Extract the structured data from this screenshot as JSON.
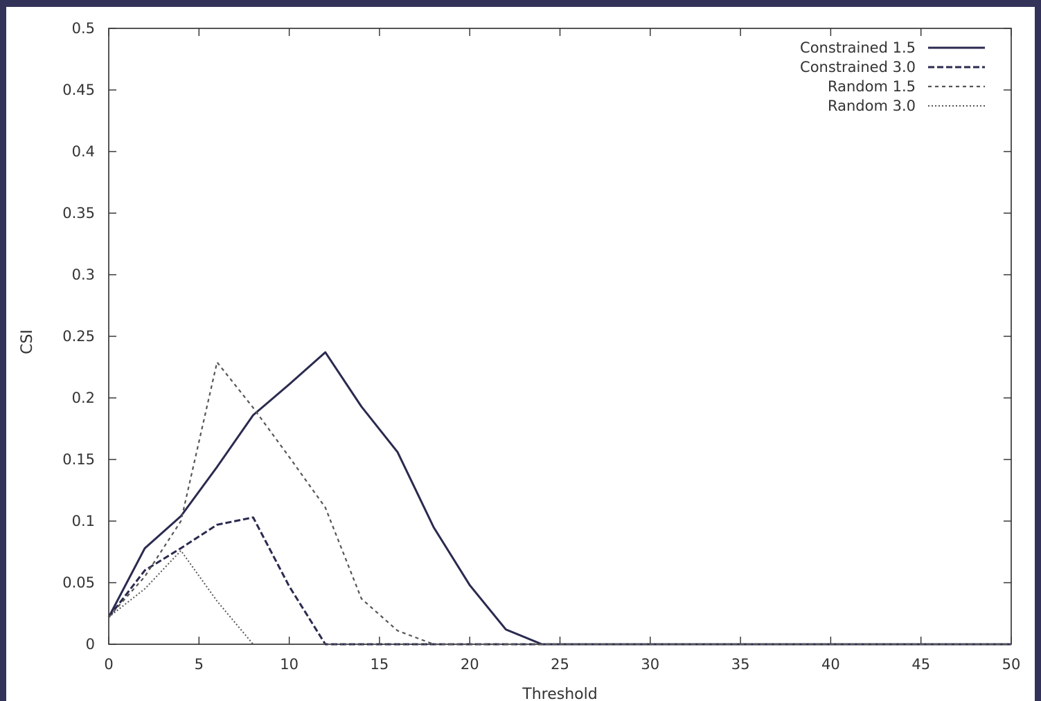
{
  "colors": {
    "background_border": "#33335a",
    "plot_background": "#ffffff",
    "axis": "#2b2b2b",
    "series_primary": "#2a2a4f",
    "series_secondary": "#555555"
  },
  "chart_data": {
    "type": "line",
    "title": "",
    "xlabel": "Threshold",
    "ylabel": "CSI",
    "xlim": [
      0,
      50
    ],
    "ylim": [
      0,
      0.5
    ],
    "xticks": [
      0,
      5,
      10,
      15,
      20,
      25,
      30,
      35,
      40,
      45,
      50
    ],
    "yticks": [
      0,
      0.05,
      0.1,
      0.15,
      0.2,
      0.25,
      0.3,
      0.35,
      0.4,
      0.45,
      0.5
    ],
    "xtick_labels": [
      "0",
      "5",
      "10",
      "15",
      "20",
      "25",
      "30",
      "35",
      "40",
      "45",
      "50"
    ],
    "ytick_labels": [
      "0",
      "0.05",
      "0.1",
      "0.15",
      "0.2",
      "0.25",
      "0.3",
      "0.35",
      "0.4",
      "0.45",
      "0.5"
    ],
    "grid": false,
    "legend_position": "top-right",
    "series": [
      {
        "name": "Constrained 1.5",
        "style": "solid",
        "color": "#2a2a4f",
        "x": [
          0,
          2,
          4,
          6,
          8,
          10,
          12,
          14,
          16,
          18,
          20,
          22,
          24,
          26,
          28,
          30,
          32,
          34,
          36,
          38,
          40,
          42,
          44,
          46,
          48,
          50
        ],
        "y": [
          0.022,
          0.078,
          0.104,
          0.144,
          0.186,
          0.211,
          0.237,
          0.193,
          0.156,
          0.095,
          0.048,
          0.012,
          0,
          0,
          0,
          0,
          0,
          0,
          0,
          0,
          0,
          0,
          0,
          0,
          0,
          0
        ]
      },
      {
        "name": "Constrained 3.0",
        "style": "dashed",
        "color": "#2a2a4f",
        "x": [
          0,
          2,
          4,
          6,
          8,
          10,
          12,
          14,
          16,
          18,
          20,
          22,
          24,
          26,
          28,
          30,
          32,
          34,
          36,
          38,
          40,
          42,
          44,
          46,
          48,
          50
        ],
        "y": [
          0.022,
          0.06,
          0.078,
          0.097,
          0.103,
          0.047,
          0,
          0,
          0,
          0,
          0,
          0,
          0,
          0,
          0,
          0,
          0,
          0,
          0,
          0,
          0,
          0,
          0,
          0,
          0,
          0
        ]
      },
      {
        "name": "Random 1.5",
        "style": "short-dashed",
        "color": "#555555",
        "x": [
          0,
          2,
          4,
          6,
          8,
          10,
          12,
          14,
          16,
          18,
          20,
          22,
          24,
          26,
          28,
          30,
          32,
          34,
          36,
          38,
          40,
          42,
          44,
          46,
          48,
          50
        ],
        "y": [
          0.022,
          0.055,
          0.1,
          0.229,
          0.192,
          0.152,
          0.111,
          0.037,
          0.011,
          0,
          0,
          0,
          0,
          0,
          0,
          0,
          0,
          0,
          0,
          0,
          0,
          0,
          0,
          0,
          0,
          0
        ]
      },
      {
        "name": "Random 3.0",
        "style": "dotted",
        "color": "#555555",
        "x": [
          0,
          2,
          4,
          6,
          8,
          10,
          12,
          14,
          16,
          18,
          20,
          22,
          24,
          26,
          28,
          30,
          32,
          34,
          36,
          38,
          40,
          42,
          44,
          46,
          48,
          50
        ],
        "y": [
          0.022,
          0.045,
          0.076,
          0.035,
          0,
          0,
          0,
          0,
          0,
          0,
          0,
          0,
          0,
          0,
          0,
          0,
          0,
          0,
          0,
          0,
          0,
          0,
          0,
          0,
          0,
          0
        ]
      }
    ]
  }
}
